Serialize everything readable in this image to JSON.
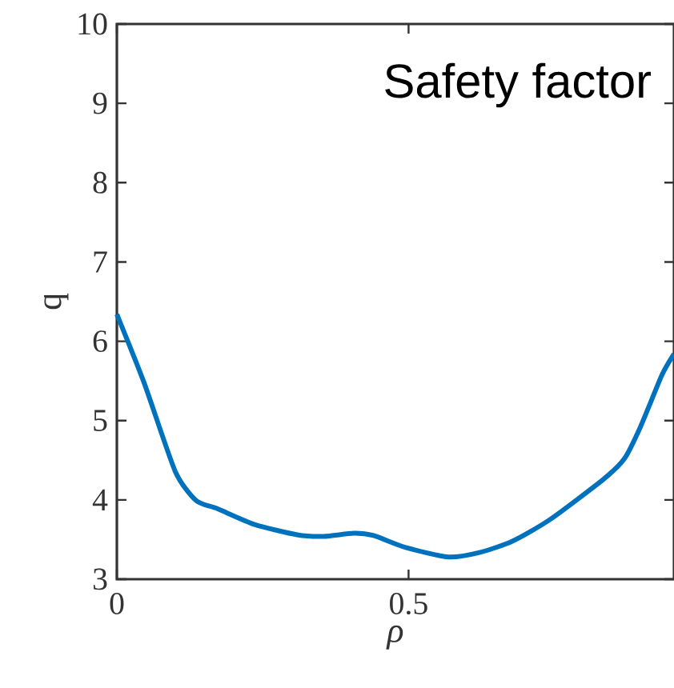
{
  "chart_data": {
    "type": "line",
    "xlabel": "ρ",
    "ylabel": "q",
    "annotations": [
      "Safety factor"
    ],
    "x": [
      0,
      0.047,
      0.1,
      0.136,
      0.172,
      0.236,
      0.309,
      0.355,
      0.406,
      0.44,
      0.495,
      0.568,
      0.623,
      0.678,
      0.742,
      0.834,
      0.87,
      0.898,
      0.934,
      0.955
    ],
    "series": [
      {
        "color": "#0072bd",
        "values": [
          6.34,
          5.47,
          4.36,
          3.99,
          3.89,
          3.69,
          3.56,
          3.54,
          3.58,
          3.55,
          3.4,
          3.28,
          3.34,
          3.48,
          3.75,
          4.26,
          4.52,
          4.93,
          5.57,
          5.84
        ]
      }
    ],
    "xlim": [
      0,
      0.955
    ],
    "ylim": [
      3,
      10
    ],
    "xticks": [
      0,
      0.5
    ],
    "yticks": [
      3,
      4,
      5,
      6,
      7,
      8,
      9,
      10
    ],
    "marker": "none",
    "line_style": "solid"
  }
}
